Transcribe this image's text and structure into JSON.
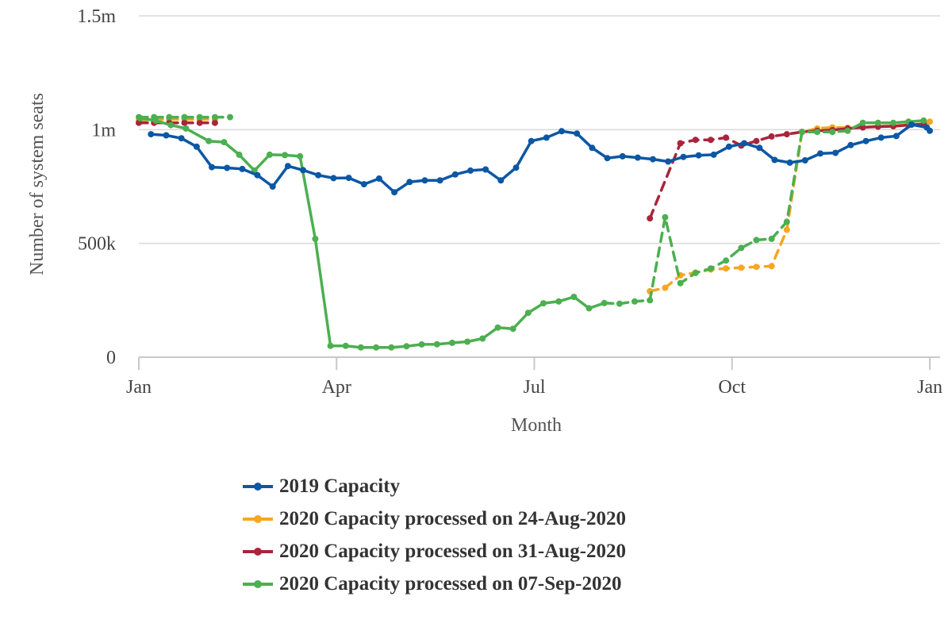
{
  "chart_data": {
    "type": "line",
    "title": "",
    "xlabel": "Month",
    "ylabel": "Number of system seats",
    "x_ticks": [
      "Jan",
      "Apr",
      "Jul",
      "Oct",
      "Jan"
    ],
    "y_ticks": [
      {
        "value": 0,
        "label": "0"
      },
      {
        "value": 500000,
        "label": "500k"
      },
      {
        "value": 1000000,
        "label": "1m"
      },
      {
        "value": 1500000,
        "label": "1.5m"
      }
    ],
    "ylim": [
      0,
      1500000
    ],
    "xlim_weeks": [
      0,
      52
    ],
    "grid": "horizontal",
    "legend_position": "bottom",
    "series": [
      {
        "name": "2019 Capacity",
        "color": "#0b57a4",
        "dash": false,
        "points": [
          [
            0.8,
            980000
          ],
          [
            1.8,
            975000
          ],
          [
            2.8,
            962000
          ],
          [
            3.8,
            925000
          ],
          [
            4.8,
            835000
          ],
          [
            5.8,
            832000
          ],
          [
            6.8,
            827000
          ],
          [
            7.8,
            800000
          ],
          [
            8.8,
            750000
          ],
          [
            9.8,
            840000
          ],
          [
            10.8,
            822000
          ],
          [
            11.8,
            800000
          ],
          [
            12.8,
            787000
          ],
          [
            13.8,
            788000
          ],
          [
            14.8,
            760000
          ],
          [
            15.8,
            785000
          ],
          [
            16.8,
            725000
          ],
          [
            17.8,
            770000
          ],
          [
            18.8,
            777000
          ],
          [
            19.8,
            777000
          ],
          [
            20.8,
            803000
          ],
          [
            21.8,
            820000
          ],
          [
            22.8,
            825000
          ],
          [
            23.8,
            777000
          ],
          [
            24.8,
            833000
          ],
          [
            25.8,
            950000
          ],
          [
            26.8,
            965000
          ],
          [
            27.8,
            993000
          ],
          [
            28.8,
            983000
          ],
          [
            29.8,
            920000
          ],
          [
            30.8,
            875000
          ],
          [
            31.8,
            883000
          ],
          [
            32.8,
            877000
          ],
          [
            33.8,
            870000
          ],
          [
            34.8,
            860000
          ],
          [
            35.8,
            880000
          ],
          [
            36.8,
            887000
          ],
          [
            37.8,
            890000
          ],
          [
            38.8,
            925000
          ],
          [
            39.8,
            940000
          ],
          [
            40.8,
            920000
          ],
          [
            41.8,
            867000
          ],
          [
            42.8,
            855000
          ],
          [
            43.8,
            865000
          ],
          [
            44.8,
            895000
          ],
          [
            45.8,
            898000
          ],
          [
            46.8,
            932000
          ],
          [
            47.8,
            950000
          ],
          [
            48.8,
            965000
          ],
          [
            49.8,
            972000
          ],
          [
            50.8,
            1022000
          ],
          [
            51.8,
            1010000
          ],
          [
            52.0,
            995000
          ]
        ]
      },
      {
        "name": "2020 Capacity processed on 24-Aug-2020",
        "color": "#f6a623",
        "dash": true,
        "points": [
          [
            0,
            1040000
          ],
          [
            1,
            1045000
          ],
          [
            2,
            1045000
          ],
          [
            3,
            1045000
          ],
          [
            4,
            1045000
          ],
          [
            5,
            1045000
          ],
          [
            33.6,
            290000
          ],
          [
            34.6,
            305000
          ],
          [
            35.6,
            360000
          ],
          [
            36.6,
            372000
          ],
          [
            37.6,
            385000
          ],
          [
            38.6,
            390000
          ],
          [
            39.6,
            393000
          ],
          [
            40.6,
            397000
          ],
          [
            41.6,
            400000
          ],
          [
            42.6,
            560000
          ],
          [
            43.6,
            990000
          ],
          [
            44.6,
            1005000
          ],
          [
            45.6,
            1010000
          ],
          [
            46.6,
            1008000
          ],
          [
            47.6,
            1010000
          ],
          [
            48.6,
            1015000
          ],
          [
            49.6,
            1017000
          ],
          [
            50.6,
            1022000
          ],
          [
            51.6,
            1025000
          ],
          [
            52.0,
            1035000
          ]
        ]
      },
      {
        "name": "2020 Capacity processed on 31-Aug-2020",
        "color": "#a8253c",
        "dash": true,
        "points": [
          [
            0,
            1030000
          ],
          [
            1,
            1030000
          ],
          [
            2,
            1030000
          ],
          [
            3,
            1030000
          ],
          [
            4,
            1030000
          ],
          [
            5,
            1030000
          ],
          [
            33.6,
            610000
          ],
          [
            35.6,
            940000
          ],
          [
            36.6,
            955000
          ],
          [
            37.6,
            955000
          ],
          [
            38.6,
            965000
          ],
          [
            39.6,
            930000
          ],
          [
            40.6,
            950000
          ],
          [
            41.6,
            970000
          ],
          [
            42.6,
            980000
          ],
          [
            43.6,
            990000
          ],
          [
            44.6,
            995000
          ],
          [
            45.6,
            998000
          ],
          [
            46.6,
            1005000
          ],
          [
            47.6,
            1010000
          ],
          [
            48.6,
            1013000
          ],
          [
            49.6,
            1015000
          ],
          [
            50.6,
            1020000
          ],
          [
            51.6,
            1025000
          ]
        ]
      },
      {
        "name": "2020 Capacity processed on 07-Sep-2020",
        "color": "#4caf50",
        "dash": false,
        "points": [
          [
            0,
            1055000
          ],
          [
            1,
            1055000
          ],
          [
            2,
            1055000
          ],
          [
            3,
            1055000
          ],
          [
            4,
            1055000
          ],
          [
            5,
            1055000
          ],
          [
            6,
            1055000
          ],
          [
            0.1,
            1050000
          ],
          [
            1.1,
            1040000
          ],
          [
            2.1,
            1020000
          ],
          [
            3.1,
            1005000
          ],
          [
            4.6,
            950000
          ],
          [
            5.6,
            945000
          ],
          [
            6.6,
            890000
          ],
          [
            7.6,
            820000
          ],
          [
            8.6,
            890000
          ],
          [
            9.6,
            888000
          ],
          [
            10.6,
            883000
          ],
          [
            11.6,
            520000
          ],
          [
            12.6,
            50000
          ],
          [
            13.6,
            50000
          ],
          [
            14.6,
            43000
          ],
          [
            15.6,
            43000
          ],
          [
            16.6,
            43000
          ],
          [
            17.6,
            48000
          ],
          [
            18.6,
            56000
          ],
          [
            19.6,
            57000
          ],
          [
            20.6,
            63000
          ],
          [
            21.6,
            68000
          ],
          [
            22.6,
            82000
          ],
          [
            23.6,
            130000
          ],
          [
            24.6,
            125000
          ],
          [
            25.6,
            195000
          ],
          [
            26.6,
            237000
          ],
          [
            27.6,
            245000
          ],
          [
            28.6,
            265000
          ],
          [
            29.6,
            215000
          ],
          [
            30.6,
            238000
          ],
          [
            31.6,
            235000
          ],
          [
            32.6,
            245000
          ],
          [
            33.6,
            250000
          ],
          [
            34.6,
            615000
          ],
          [
            35.6,
            325000
          ],
          [
            36.6,
            370000
          ],
          [
            37.6,
            390000
          ],
          [
            38.6,
            425000
          ],
          [
            39.6,
            480000
          ],
          [
            40.6,
            515000
          ],
          [
            41.6,
            520000
          ],
          [
            42.6,
            595000
          ],
          [
            43.6,
            990000
          ],
          [
            44.6,
            990000
          ],
          [
            45.6,
            990000
          ],
          [
            46.6,
            995000
          ],
          [
            47.6,
            1030000
          ],
          [
            48.6,
            1030000
          ],
          [
            49.6,
            1030000
          ],
          [
            50.6,
            1035000
          ],
          [
            51.6,
            1040000
          ]
        ]
      }
    ]
  }
}
